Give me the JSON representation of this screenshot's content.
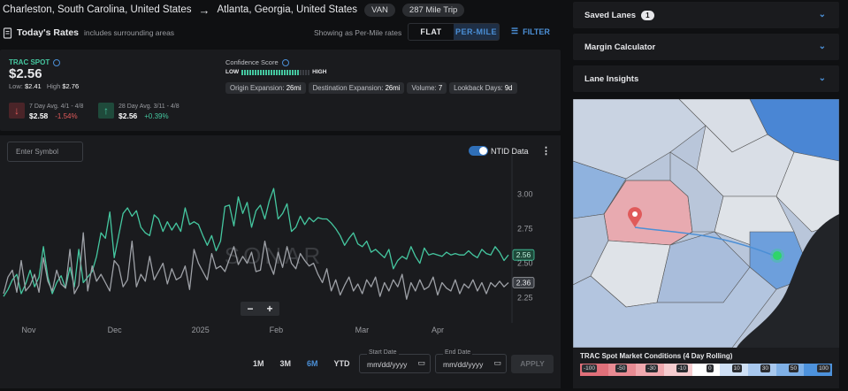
{
  "route": {
    "origin": "Charleston, South Carolina, United States",
    "destination": "Atlanta, Georgia, United States",
    "equipment": "VAN",
    "trip": "287 Mile Trip"
  },
  "rates_header": {
    "title": "Today's Rates",
    "subtitle": "includes surrounding areas",
    "showing": "Showing as Per-Mile rates",
    "flat": "FLAT",
    "per_mile": "PER-MILE",
    "filter": "FILTER"
  },
  "spot": {
    "label": "TRAC SPOT",
    "value": "$2.56",
    "low_label": "Low:",
    "low": "$2.41",
    "high_label": "High",
    "high": "$2.76"
  },
  "avg7": {
    "label": "7 Day Avg. 4/1 - 4/8",
    "value": "$2.58",
    "change": "-1.54%"
  },
  "avg28": {
    "label": "28 Day Avg. 3/11 - 4/8",
    "value": "$2.56",
    "change": "+0.39%"
  },
  "confidence": {
    "label": "Confidence Score",
    "low": "LOW",
    "high": "HIGH",
    "level": 0.86
  },
  "chips": [
    {
      "label": "Origin Expansion:",
      "value": "26mi"
    },
    {
      "label": "Destination Expansion:",
      "value": "26mi"
    },
    {
      "label": "Volume:",
      "value": "7"
    },
    {
      "label": "Lookback Days:",
      "value": "9d"
    }
  ],
  "chart_controls": {
    "symbol_placeholder": "Enter Symbol",
    "ntid": "NTID Data",
    "watermark": "SONAR"
  },
  "ranges": [
    "1M",
    "3M",
    "6M",
    "YTD"
  ],
  "active_range": "6M",
  "dates": {
    "start_label": "Start Date",
    "end_label": "End Date",
    "placeholder": "mm/dd/yyyy",
    "apply": "APPLY"
  },
  "chart_data": {
    "type": "line",
    "ylim": [
      2.12,
      3.22
    ],
    "yticks": [
      "3.00",
      "2.75",
      "2.50",
      "2.25"
    ],
    "yvals": [
      3.0,
      2.75,
      2.5,
      2.25
    ],
    "xticks": [
      {
        "label": "Nov",
        "pos": 0.05
      },
      {
        "label": "Dec",
        "pos": 0.22
      },
      {
        "label": "2025",
        "pos": 0.39
      },
      {
        "label": "Feb",
        "pos": 0.54
      },
      {
        "label": "Mar",
        "pos": 0.71
      },
      {
        "label": "Apr",
        "pos": 0.86
      }
    ],
    "series": [
      {
        "values": [
          2.26,
          2.31,
          2.38,
          2.42,
          2.28,
          2.35,
          2.45,
          2.33,
          2.4,
          2.62,
          2.4,
          2.28,
          2.36,
          2.41,
          2.32,
          2.47,
          2.33,
          2.6,
          2.36,
          2.4,
          2.44,
          2.55,
          2.72,
          2.68,
          2.87,
          2.54,
          2.7,
          2.86,
          2.9,
          2.84,
          2.88,
          2.76,
          2.72,
          2.7,
          2.85,
          2.82,
          2.73,
          2.8,
          2.74,
          2.79,
          2.73,
          2.9,
          2.78,
          2.8,
          2.78,
          2.7,
          2.63,
          2.7,
          2.59,
          2.66,
          2.91,
          2.92,
          2.77,
          2.98,
          2.86,
          2.94,
          2.76,
          2.88,
          2.92,
          2.82,
          2.95,
          3.04,
          2.82,
          2.86,
          2.93,
          2.73,
          2.76,
          2.84,
          2.78,
          2.83,
          2.8,
          2.83,
          2.82,
          2.82,
          2.79,
          2.75,
          2.7,
          2.63,
          2.68,
          2.72,
          2.64,
          2.62,
          2.66,
          2.58,
          2.6,
          2.57,
          2.54,
          2.6,
          2.46,
          2.52,
          2.55,
          2.53,
          2.62,
          2.55,
          2.5,
          2.61,
          2.56,
          2.57,
          2.56,
          2.55,
          2.58,
          2.56,
          2.57,
          2.56,
          2.56,
          2.59,
          2.56,
          2.54,
          2.6,
          2.57,
          2.56,
          2.62,
          2.58,
          2.52,
          2.56
        ]
      },
      {
        "values": [
          2.28,
          2.4,
          2.45,
          2.29,
          2.52,
          2.3,
          2.34,
          2.42,
          2.29,
          2.54,
          2.37,
          2.3,
          2.45,
          2.35,
          2.32,
          2.6,
          2.28,
          2.34,
          2.72,
          2.3,
          2.48,
          2.37,
          2.42,
          2.36,
          2.3,
          2.52,
          2.48,
          2.33,
          2.38,
          2.66,
          2.33,
          2.42,
          2.37,
          2.55,
          2.38,
          2.44,
          2.5,
          2.35,
          2.46,
          2.38,
          2.4,
          2.48,
          2.31,
          2.6,
          2.5,
          2.44,
          2.38,
          2.57,
          2.46,
          2.48,
          2.44,
          2.53,
          2.62,
          2.49,
          2.55,
          2.5,
          2.58,
          2.44,
          2.45,
          2.66,
          2.5,
          2.42,
          2.58,
          2.47,
          2.62,
          2.5,
          2.46,
          2.57,
          2.52,
          2.48,
          2.5,
          2.42,
          2.36,
          2.46,
          2.3,
          2.38,
          2.27,
          2.34,
          2.4,
          2.3,
          2.35,
          2.28,
          2.38,
          2.33,
          2.4,
          2.26,
          2.36,
          2.3,
          2.38,
          2.33,
          2.42,
          2.24,
          2.36,
          2.3,
          2.38,
          2.31,
          2.33,
          2.4,
          2.27,
          2.36,
          2.32,
          2.3,
          2.38,
          2.28,
          2.35,
          2.32,
          2.38,
          2.3,
          2.36,
          2.28,
          2.36,
          2.33,
          2.37,
          2.33,
          2.36
        ]
      }
    ],
    "last_labels": [
      "2.56",
      "2.36"
    ]
  },
  "side": {
    "saved_lanes": "Saved Lanes",
    "saved_count": "1",
    "margin": "Margin Calculator",
    "insights": "Lane Insights"
  },
  "map_legend": {
    "title": "TRAC Spot Market Conditions (4 Day Rolling)",
    "labels": [
      "-100",
      "-50",
      "-30",
      "-10",
      "0",
      "10",
      "30",
      "50",
      "100"
    ]
  },
  "colors": {
    "accent": "#4b8fd6",
    "green": "#45c7a0",
    "grey_line": "#9ea1a7",
    "up": "#45c7a0",
    "down": "#e05a5a"
  }
}
